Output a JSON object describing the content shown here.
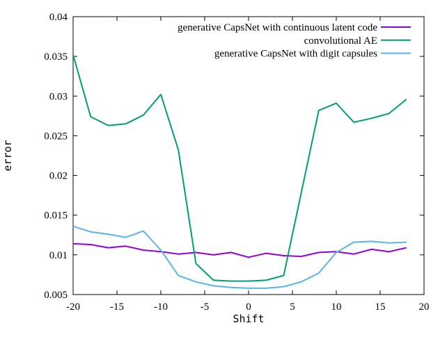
{
  "chart_data": {
    "type": "line",
    "title": "",
    "xlabel": "Shift",
    "ylabel": "error",
    "xlim": [
      -20,
      20
    ],
    "ylim": [
      0.005,
      0.04
    ],
    "grid": false,
    "legend_position": "top-right-inside",
    "frame_color": "#000000",
    "background_color": "#ffffff",
    "xticks": [
      -20,
      -15,
      -10,
      -5,
      0,
      5,
      10,
      15,
      20
    ],
    "xtick_labels": [
      "-20",
      "-15",
      "-10",
      "-5",
      "0",
      "5",
      "10",
      "15",
      "20"
    ],
    "yticks": [
      0.005,
      0.01,
      0.015,
      0.02,
      0.025,
      0.03,
      0.035,
      0.04
    ],
    "ytick_labels": [
      "0.005",
      "0.01",
      "0.015",
      "0.02",
      "0.025",
      "0.03",
      "0.035",
      "0.04"
    ],
    "x": [
      -20,
      -18,
      -16,
      -14,
      -12,
      -10,
      -8,
      -6,
      -4,
      -2,
      0,
      2,
      4,
      6,
      8,
      10,
      12,
      14,
      16,
      18
    ],
    "series": [
      {
        "name": "generative CapsNet with continuous latent code",
        "color": "#9400d3",
        "values": [
          0.0114,
          0.0113,
          0.0109,
          0.0111,
          0.0106,
          0.0104,
          0.0101,
          0.0103,
          0.01,
          0.0103,
          0.0097,
          0.0102,
          0.0099,
          0.0098,
          0.0103,
          0.0104,
          0.0101,
          0.0107,
          0.0104,
          0.0109
        ]
      },
      {
        "name": "convolutional AE",
        "color": "#009e73",
        "values": [
          0.0352,
          0.0274,
          0.0263,
          0.0265,
          0.0276,
          0.0302,
          0.0232,
          0.0089,
          0.0068,
          0.0067,
          0.0067,
          0.0068,
          0.0074,
          0.0178,
          0.0282,
          0.0291,
          0.0267,
          0.0272,
          0.0278,
          0.0296
        ]
      },
      {
        "name": "generative CapsNet with digit capsules",
        "color": "#56b4e9",
        "values": [
          0.0136,
          0.0129,
          0.0126,
          0.0122,
          0.013,
          0.0106,
          0.0074,
          0.0066,
          0.0061,
          0.0059,
          0.0058,
          0.0058,
          0.006,
          0.0066,
          0.0077,
          0.0103,
          0.0116,
          0.0117,
          0.0115,
          0.0116
        ]
      }
    ]
  }
}
